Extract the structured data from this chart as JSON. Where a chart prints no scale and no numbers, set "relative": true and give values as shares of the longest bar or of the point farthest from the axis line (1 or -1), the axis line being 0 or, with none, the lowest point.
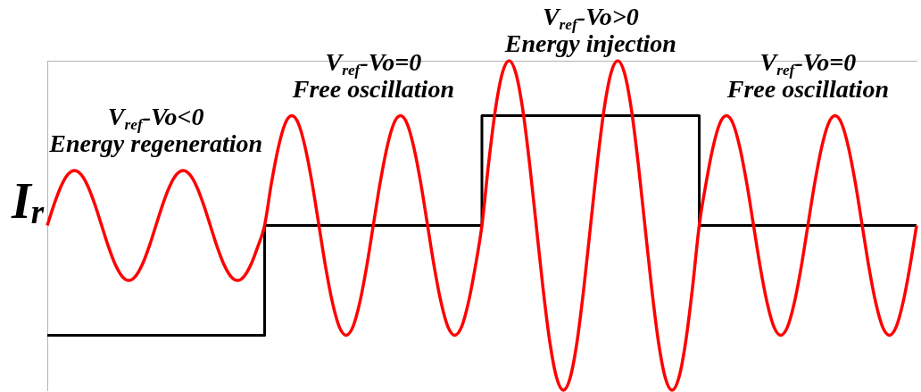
{
  "chart_data": {
    "type": "line",
    "relative": true,
    "marker": "none",
    "ylabel": "I$_{r}$",
    "annotations": [
      "V$_{ref}$-Vo<0\nEnergy regeneration",
      "V$_{ref}$-Vo=0\nFree oscillation",
      "V$_{ref}$-Vo>0\nEnergy injection",
      "V$_{ref}$-Vo=0\nFree oscillation"
    ],
    "categories": [
      null,
      null,
      null,
      null,
      null,
      null,
      null,
      null,
      null,
      null,
      null,
      null,
      null,
      null,
      null,
      null,
      null,
      null,
      null,
      null,
      null,
      null,
      null,
      null,
      null,
      null,
      null,
      null,
      null,
      null,
      null,
      null,
      null,
      null,
      null,
      null,
      null,
      null,
      null,
      null,
      null,
      null,
      null,
      null,
      null,
      null,
      null,
      null,
      null,
      null,
      null,
      null,
      null,
      null,
      null,
      null,
      null,
      null,
      null,
      null,
      null,
      null,
      null,
      null,
      null,
      null,
      null,
      null,
      null,
      null,
      null,
      null,
      null,
      null,
      null,
      null,
      null,
      null,
      null,
      null,
      null,
      null,
      null,
      null,
      null,
      null,
      null,
      null,
      null,
      null,
      null,
      null,
      null,
      null,
      null,
      null,
      null,
      null,
      null,
      null,
      null,
      null,
      null,
      null,
      null,
      null,
      null,
      null,
      null,
      null,
      null,
      null,
      null,
      null,
      null,
      null,
      null,
      null,
      null,
      null,
      null,
      null,
      null,
      null,
      null,
      null,
      null,
      null,
      null
    ],
    "series": [
      {
        "type": "line",
        "color": "#ff0000",
        "values": [
          0.5,
          0.564,
          0.618,
          0.654,
          0.667,
          0.654,
          0.618,
          0.564,
          0.5,
          0.436,
          0.382,
          0.346,
          0.333,
          0.346,
          0.382,
          0.436,
          0.5,
          0.564,
          0.618,
          0.654,
          0.667,
          0.654,
          0.618,
          0.564,
          0.5,
          0.436,
          0.382,
          0.346,
          0.333,
          0.346,
          0.382,
          0.436,
          0.5,
          0.628,
          0.735,
          0.808,
          0.833,
          0.808,
          0.735,
          0.628,
          0.5,
          0.372,
          0.265,
          0.192,
          0.167,
          0.192,
          0.265,
          0.372,
          0.5,
          0.628,
          0.735,
          0.808,
          0.833,
          0.808,
          0.735,
          0.628,
          0.5,
          0.372,
          0.265,
          0.192,
          0.167,
          0.192,
          0.265,
          0.372,
          0.5,
          0.691,
          0.854,
          0.962,
          1,
          0.962,
          0.854,
          0.691,
          0.5,
          0.309,
          0.146,
          0.038,
          0,
          0.038,
          0.146,
          0.309,
          0.5,
          0.691,
          0.854,
          0.962,
          1,
          0.962,
          0.854,
          0.691,
          0.5,
          0.309,
          0.146,
          0.038,
          0,
          0.038,
          0.146,
          0.309,
          0.5,
          0.628,
          0.735,
          0.808,
          0.833,
          0.808,
          0.735,
          0.628,
          0.5,
          0.372,
          0.265,
          0.192,
          0.167,
          0.192,
          0.265,
          0.372,
          0.5,
          0.628,
          0.735,
          0.808,
          0.833,
          0.808,
          0.735,
          0.628,
          0.5,
          0.372,
          0.265,
          0.192,
          0.167,
          0.192,
          0.265,
          0.372,
          0.5
        ]
      },
      {
        "type": "step",
        "color": "#000000",
        "values": [
          0.167,
          0.167,
          0.167,
          0.167,
          0.167,
          0.167,
          0.167,
          0.167,
          0.167,
          0.167,
          0.167,
          0.167,
          0.167,
          0.167,
          0.167,
          0.167,
          0.167,
          0.167,
          0.167,
          0.167,
          0.167,
          0.167,
          0.167,
          0.167,
          0.167,
          0.167,
          0.167,
          0.167,
          0.167,
          0.167,
          0.167,
          0.167,
          0.5,
          0.5,
          0.5,
          0.5,
          0.5,
          0.5,
          0.5,
          0.5,
          0.5,
          0.5,
          0.5,
          0.5,
          0.5,
          0.5,
          0.5,
          0.5,
          0.5,
          0.5,
          0.5,
          0.5,
          0.5,
          0.5,
          0.5,
          0.5,
          0.5,
          0.5,
          0.5,
          0.5,
          0.5,
          0.5,
          0.5,
          0.5,
          0.833,
          0.833,
          0.833,
          0.833,
          0.833,
          0.833,
          0.833,
          0.833,
          0.833,
          0.833,
          0.833,
          0.833,
          0.833,
          0.833,
          0.833,
          0.833,
          0.833,
          0.833,
          0.833,
          0.833,
          0.833,
          0.833,
          0.833,
          0.833,
          0.833,
          0.833,
          0.833,
          0.833,
          0.833,
          0.833,
          0.833,
          0.833,
          0.5,
          0.5,
          0.5,
          0.5,
          0.5,
          0.5,
          0.5,
          0.5,
          0.5,
          0.5,
          0.5,
          0.5,
          0.5,
          0.5,
          0.5,
          0.5,
          0.5,
          0.5,
          0.5,
          0.5,
          0.5,
          0.5,
          0.5,
          0.5,
          0.5,
          0.5,
          0.5,
          0.5,
          0.5,
          0.5,
          0.5,
          0.5,
          0.5
        ]
      }
    ]
  }
}
